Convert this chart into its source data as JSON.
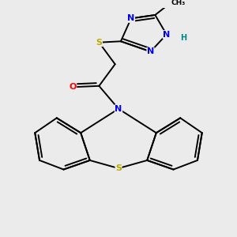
{
  "bg_color": "#ebebeb",
  "atom_colors": {
    "N": "#0000ee",
    "O": "#ff0000",
    "S": "#bbaa00",
    "H": "#008888"
  },
  "bond_color": "#000000",
  "bond_lw": 1.4
}
